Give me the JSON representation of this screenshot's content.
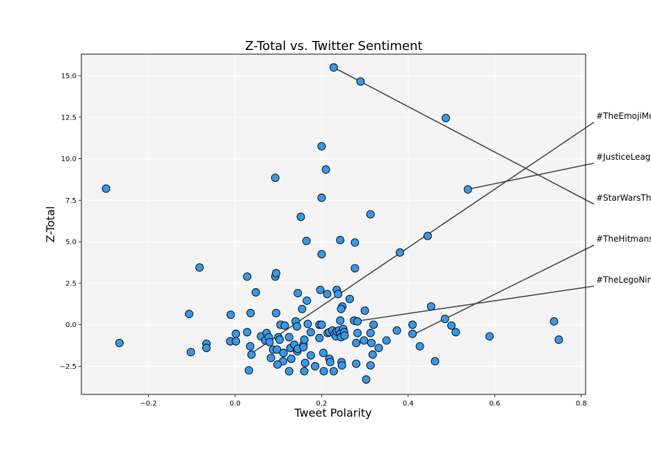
{
  "chart_data": {
    "type": "scatter",
    "title": "Z-Total vs. Twitter Sentiment",
    "xlabel": "Tweet Polarity",
    "ylabel": "Z-Total",
    "xlim": [
      -0.355,
      0.81
    ],
    "ylim": [
      -4.2,
      16.3
    ],
    "x_ticks": [
      -0.2,
      0.0,
      0.2,
      0.4,
      0.6,
      0.8
    ],
    "x_tick_labels": [
      "−0.2",
      "0.0",
      "0.2",
      "0.4",
      "0.6",
      "0.8"
    ],
    "y_ticks": [
      -2.5,
      0.0,
      2.5,
      5.0,
      7.5,
      10.0,
      12.5,
      15.0
    ],
    "y_tick_labels": [
      "−2.5",
      "0.0",
      "2.5",
      "5.0",
      "7.5",
      "10.0",
      "12.5",
      "15.0"
    ],
    "grid": true,
    "colors": {
      "marker_fill": "#3399ee",
      "marker_edge": "#000000",
      "plot_bg": "#f4f4f4",
      "grid": "#ffffff",
      "annotation_line": "#444444"
    },
    "points": [
      [
        0.228,
        15.5
      ],
      [
        0.29,
        14.65
      ],
      [
        0.487,
        12.45
      ],
      [
        0.2,
        10.75
      ],
      [
        0.21,
        9.35
      ],
      [
        -0.298,
        8.2
      ],
      [
        0.093,
        8.85
      ],
      [
        0.2,
        7.65
      ],
      [
        0.538,
        8.15
      ],
      [
        0.313,
        6.65
      ],
      [
        0.152,
        6.5
      ],
      [
        0.165,
        5.05
      ],
      [
        0.243,
        5.1
      ],
      [
        0.277,
        4.95
      ],
      [
        0.2,
        4.25
      ],
      [
        0.381,
        4.35
      ],
      [
        0.445,
        5.35
      ],
      [
        -0.082,
        3.45
      ],
      [
        0.277,
        3.4
      ],
      [
        0.028,
        2.9
      ],
      [
        0.093,
        2.9
      ],
      [
        0.095,
        3.1
      ],
      [
        0.048,
        1.95
      ],
      [
        0.145,
        1.9
      ],
      [
        0.197,
        2.1
      ],
      [
        0.235,
        2.1
      ],
      [
        0.213,
        1.85
      ],
      [
        0.238,
        1.85
      ],
      [
        0.166,
        1.45
      ],
      [
        0.265,
        1.55
      ],
      [
        0.155,
        0.95
      ],
      [
        0.248,
        1.1
      ],
      [
        0.245,
        0.95
      ],
      [
        0.453,
        1.1
      ],
      [
        0.3,
        0.85
      ],
      [
        -0.106,
        0.65
      ],
      [
        -0.01,
        0.6
      ],
      [
        0.036,
        0.7
      ],
      [
        0.095,
        0.7
      ],
      [
        0.485,
        0.35
      ],
      [
        0.737,
        0.2
      ],
      [
        0.14,
        0.2
      ],
      [
        0.168,
        0.05
      ],
      [
        0.105,
        0.0
      ],
      [
        0.115,
        -0.05
      ],
      [
        0.143,
        -0.1
      ],
      [
        0.195,
        0.0
      ],
      [
        0.2,
        0.0
      ],
      [
        0.243,
        0.25
      ],
      [
        0.275,
        0.25
      ],
      [
        0.283,
        0.2
      ],
      [
        0.32,
        0.0
      ],
      [
        0.41,
        0.0
      ],
      [
        0.5,
        -0.05
      ],
      [
        0.374,
        -0.35
      ],
      [
        -0.267,
        -1.1
      ],
      [
        -0.102,
        -1.65
      ],
      [
        -0.066,
        -1.15
      ],
      [
        -0.066,
        -1.4
      ],
      [
        -0.011,
        -1.0
      ],
      [
        0.002,
        -0.55
      ],
      [
        0.002,
        -1.0
      ],
      [
        0.028,
        -0.45
      ],
      [
        0.035,
        -1.3
      ],
      [
        0.038,
        -1.8
      ],
      [
        0.06,
        -0.7
      ],
      [
        0.07,
        -0.95
      ],
      [
        0.073,
        -0.5
      ],
      [
        0.078,
        -0.75
      ],
      [
        0.08,
        -1.05
      ],
      [
        0.083,
        -2.0
      ],
      [
        0.088,
        -1.5
      ],
      [
        0.097,
        -1.5
      ],
      [
        0.1,
        -0.75
      ],
      [
        0.103,
        -0.9
      ],
      [
        0.112,
        -1.7
      ],
      [
        0.111,
        -2.2
      ],
      [
        0.098,
        -2.4
      ],
      [
        0.125,
        -0.75
      ],
      [
        0.128,
        -1.4
      ],
      [
        0.13,
        -2.05
      ],
      [
        0.137,
        -1.2
      ],
      [
        0.143,
        -1.55
      ],
      [
        0.144,
        -1.6
      ],
      [
        0.145,
        -1.45
      ],
      [
        0.158,
        -1.2
      ],
      [
        0.16,
        -0.9
      ],
      [
        0.158,
        -1.35
      ],
      [
        0.162,
        -2.3
      ],
      [
        0.16,
        -2.8
      ],
      [
        0.125,
        -2.8
      ],
      [
        0.175,
        -0.45
      ],
      [
        0.175,
        -1.85
      ],
      [
        0.185,
        -2.5
      ],
      [
        0.195,
        -0.8
      ],
      [
        0.204,
        -1.7
      ],
      [
        0.205,
        -2.8
      ],
      [
        0.214,
        -0.5
      ],
      [
        0.218,
        -0.45
      ],
      [
        0.218,
        -2.05
      ],
      [
        0.22,
        -2.25
      ],
      [
        0.228,
        -2.8
      ],
      [
        0.225,
        -0.35
      ],
      [
        0.23,
        -0.55
      ],
      [
        0.233,
        -0.7
      ],
      [
        0.235,
        -0.4
      ],
      [
        0.24,
        -0.35
      ],
      [
        0.243,
        -0.55
      ],
      [
        0.245,
        -0.75
      ],
      [
        0.246,
        -2.25
      ],
      [
        0.247,
        -2.45
      ],
      [
        0.25,
        -0.25
      ],
      [
        0.252,
        -0.45
      ],
      [
        0.253,
        -0.65
      ],
      [
        0.28,
        -1.1
      ],
      [
        0.283,
        -0.5
      ],
      [
        0.28,
        -2.35
      ],
      [
        0.298,
        -0.95
      ],
      [
        0.303,
        -3.3
      ],
      [
        0.313,
        -0.5
      ],
      [
        0.315,
        -1.1
      ],
      [
        0.318,
        -1.8
      ],
      [
        0.313,
        -2.45
      ],
      [
        0.332,
        -1.4
      ],
      [
        0.35,
        -0.95
      ],
      [
        0.41,
        -0.55
      ],
      [
        0.427,
        -1.3
      ],
      [
        0.462,
        -2.2
      ],
      [
        0.51,
        -0.45
      ],
      [
        0.588,
        -0.7
      ],
      [
        0.748,
        -0.9
      ],
      [
        0.032,
        -2.75
      ]
    ],
    "annotations": [
      {
        "label": "#TheEmojiMovie",
        "point": [
          0.045,
          -1.6
        ]
      },
      {
        "label": "#JusticeLeague",
        "point": [
          0.545,
          8.2
        ]
      },
      {
        "label": "#StarWarsTheLastJedi",
        "point": [
          0.235,
          15.4
        ]
      },
      {
        "label": "#TheHitmansBodyguard",
        "point": [
          0.415,
          -0.55
        ]
      },
      {
        "label": "#TheLegoNinjagoMovie",
        "point": [
          0.29,
          0.25
        ]
      }
    ]
  }
}
